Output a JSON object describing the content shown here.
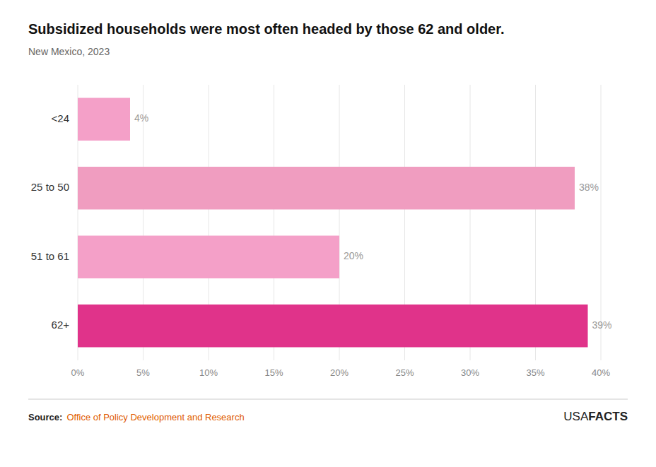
{
  "chart_data": {
    "type": "bar",
    "orientation": "horizontal",
    "title": "Subsidized households were most often headed by those 62 and older.",
    "subtitle": "New Mexico, 2023",
    "categories": [
      "<24",
      "25 to 50",
      "51 to 61",
      "62+"
    ],
    "values": [
      4,
      38,
      20,
      39
    ],
    "value_labels": [
      "4%",
      "38%",
      "20%",
      "39%"
    ],
    "colors": [
      "#f4a0c8",
      "#f09dc0",
      "#f4a0c8",
      "#e0338a"
    ],
    "xlim": [
      0,
      40
    ],
    "xticks": [
      {
        "value": 0,
        "label": "0%"
      },
      {
        "value": 5,
        "label": "5%"
      },
      {
        "value": 10,
        "label": "10%"
      },
      {
        "value": 15,
        "label": "15%"
      },
      {
        "value": 20,
        "label": "20%"
      },
      {
        "value": 25,
        "label": "25%"
      },
      {
        "value": 30,
        "label": "30%"
      },
      {
        "value": 35,
        "label": "35%"
      },
      {
        "value": 40,
        "label": "40%"
      }
    ],
    "grid": true,
    "data_labels": true,
    "annotations": [
      {
        "text": "Source:",
        "color": "#222222"
      },
      {
        "text": "Office of Policy Development and Research",
        "color": "#e05a00"
      },
      {
        "text": "USA",
        "color": "#222222"
      },
      {
        "text": "FACTS",
        "color": "#222222"
      }
    ]
  }
}
